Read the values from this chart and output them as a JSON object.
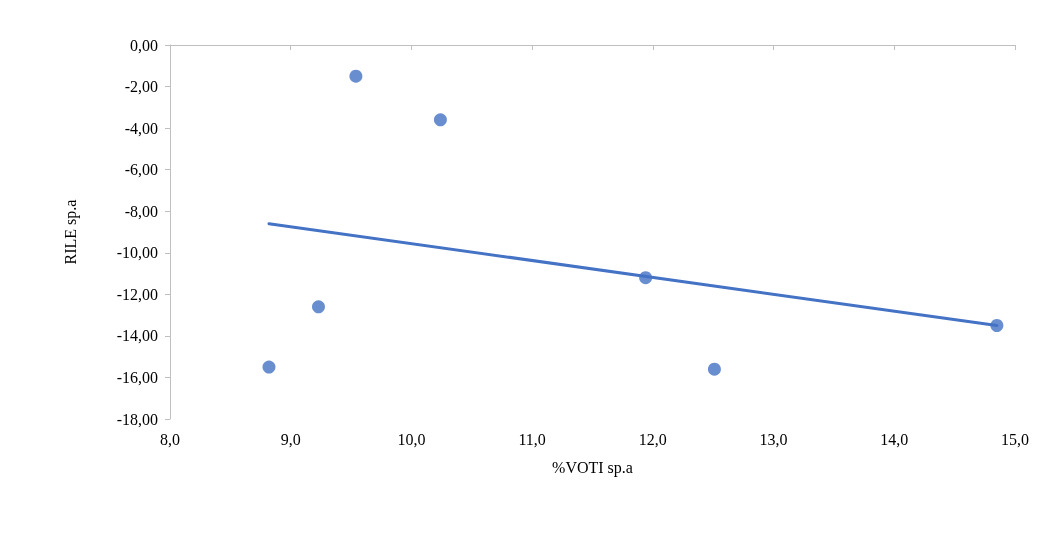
{
  "chart_data": {
    "type": "scatter",
    "xlabel": "%VOTI sp.a",
    "ylabel": "RILE sp.a",
    "xlim": [
      8,
      15
    ],
    "ylim": [
      -18,
      0
    ],
    "xticks": [
      {
        "value": 8,
        "label": "8,0"
      },
      {
        "value": 9,
        "label": "9,0"
      },
      {
        "value": 10,
        "label": "10,0"
      },
      {
        "value": 11,
        "label": "11,0"
      },
      {
        "value": 12,
        "label": "12,0"
      },
      {
        "value": 13,
        "label": "13,0"
      },
      {
        "value": 14,
        "label": "14,0"
      },
      {
        "value": 15,
        "label": "15,0"
      }
    ],
    "yticks": [
      {
        "value": 0,
        "label": "0,00"
      },
      {
        "value": -2,
        "label": "-2,00"
      },
      {
        "value": -4,
        "label": "-4,00"
      },
      {
        "value": -6,
        "label": "-6,00"
      },
      {
        "value": -8,
        "label": "-8,00"
      },
      {
        "value": -10,
        "label": "-10,00"
      },
      {
        "value": -12,
        "label": "-12,00"
      },
      {
        "value": -14,
        "label": "-14,00"
      },
      {
        "value": -16,
        "label": "-16,00"
      },
      {
        "value": -18,
        "label": "-18,00"
      }
    ],
    "marker": "circle",
    "grid": false,
    "series": [
      {
        "color": "#4472c4",
        "x": [
          9.54,
          10.24,
          9.23,
          8.82,
          11.94,
          12.51,
          14.85
        ],
        "values": [
          -1.5,
          -3.6,
          -12.6,
          -15.5,
          -11.2,
          -15.6,
          -13.5
        ]
      },
      {
        "type": "line",
        "marker": "none",
        "color": "#4472c4",
        "x": [
          8.82,
          14.85
        ],
        "values": [
          -8.6,
          -13.5
        ]
      }
    ]
  }
}
